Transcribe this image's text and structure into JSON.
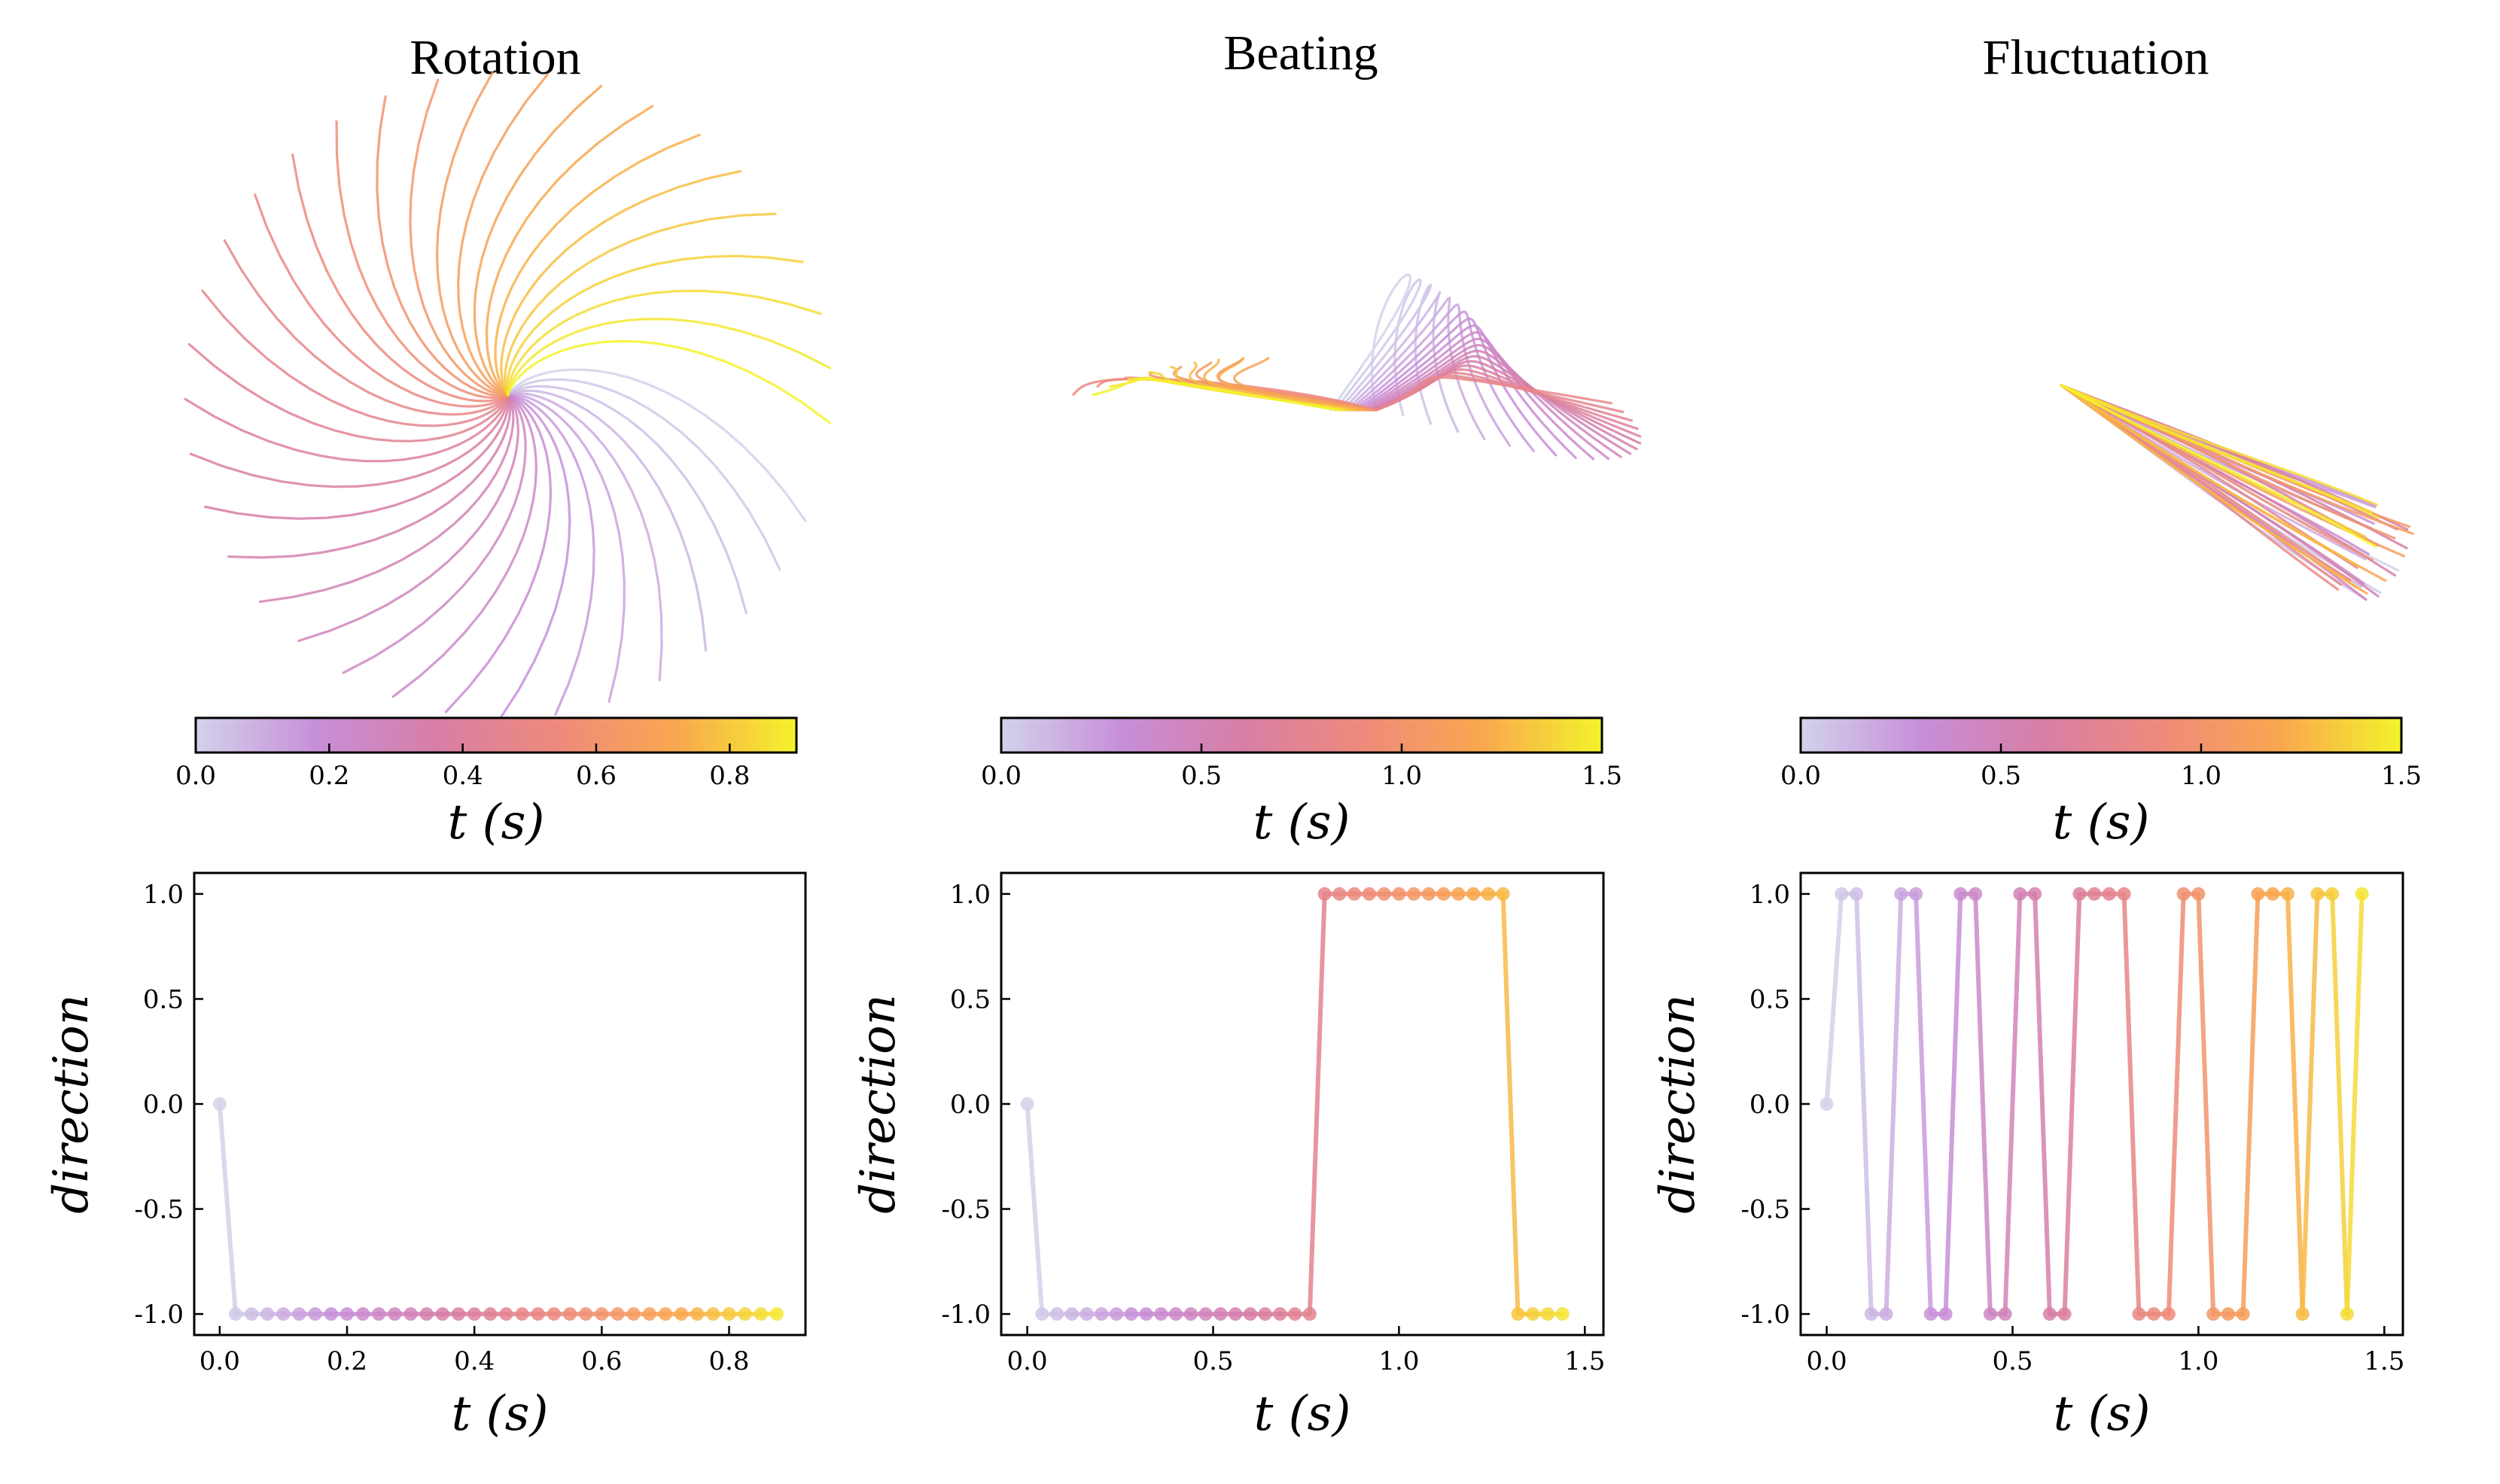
{
  "figure": {
    "panels": [
      {
        "title": "Rotation",
        "colorbar": {
          "label": "t (s)",
          "min": 0.0,
          "max": 0.9,
          "ticks": [
            "0.0",
            "0.2",
            "0.4",
            "0.6",
            "0.8"
          ],
          "tick_values": [
            0.0,
            0.2,
            0.4,
            0.6,
            0.8
          ]
        }
      },
      {
        "title": "Beating",
        "colorbar": {
          "label": "t (s)",
          "min": 0.0,
          "max": 1.5,
          "ticks": [
            "0.0",
            "0.5",
            "1.0",
            "1.5"
          ],
          "tick_values": [
            0.0,
            0.5,
            1.0,
            1.5
          ]
        }
      },
      {
        "title": "Fluctuation",
        "colorbar": {
          "label": "t (s)",
          "min": 0.0,
          "max": 1.5,
          "ticks": [
            "0.0",
            "0.5",
            "1.0",
            "1.5"
          ],
          "tick_values": [
            0.0,
            0.5,
            1.0,
            1.5
          ]
        }
      }
    ],
    "colormap": [
      "#d2d2ea",
      "#c78fd9",
      "#d77ea6",
      "#ee8a7c",
      "#f9a74f",
      "#f3f32b"
    ]
  },
  "chart_data": [
    {
      "type": "line",
      "panel": "Rotation",
      "xlabel": "t (s)",
      "ylabel": "direction",
      "xlim": [
        -0.04,
        0.92
      ],
      "ylim": [
        -1.1,
        1.1
      ],
      "xticks": [
        "0.0",
        "0.2",
        "0.4",
        "0.6",
        "0.8"
      ],
      "xtick_values": [
        0.0,
        0.2,
        0.4,
        0.6,
        0.8
      ],
      "yticks": [
        "1.0",
        "0.5",
        "0.0",
        "-0.5",
        "-1.0"
      ],
      "ytick_values": [
        1.0,
        0.5,
        0.0,
        -0.5,
        -1.0
      ],
      "x": [
        0.0,
        0.025,
        0.05,
        0.075,
        0.1,
        0.125,
        0.15,
        0.175,
        0.2,
        0.225,
        0.25,
        0.275,
        0.3,
        0.325,
        0.35,
        0.375,
        0.4,
        0.425,
        0.45,
        0.475,
        0.5,
        0.525,
        0.55,
        0.575,
        0.6,
        0.625,
        0.65,
        0.675,
        0.7,
        0.725,
        0.75,
        0.775,
        0.8,
        0.825,
        0.85,
        0.875
      ],
      "y": [
        0,
        -1,
        -1,
        -1,
        -1,
        -1,
        -1,
        -1,
        -1,
        -1,
        -1,
        -1,
        -1,
        -1,
        -1,
        -1,
        -1,
        -1,
        -1,
        -1,
        -1,
        -1,
        -1,
        -1,
        -1,
        -1,
        -1,
        -1,
        -1,
        -1,
        -1,
        -1,
        -1,
        -1,
        -1,
        -1
      ]
    },
    {
      "type": "line",
      "panel": "Beating",
      "xlabel": "t (s)",
      "ylabel": "direction",
      "xlim": [
        -0.07,
        1.55
      ],
      "ylim": [
        -1.1,
        1.1
      ],
      "xticks": [
        "0.0",
        "0.5",
        "1.0",
        "1.5"
      ],
      "xtick_values": [
        0.0,
        0.5,
        1.0,
        1.5
      ],
      "yticks": [
        "1.0",
        "0.5",
        "0.0",
        "-0.5",
        "-1.0"
      ],
      "ytick_values": [
        1.0,
        0.5,
        0.0,
        -0.5,
        -1.0
      ],
      "x": [
        0.0,
        0.04,
        0.08,
        0.12,
        0.16,
        0.2,
        0.24,
        0.28,
        0.32,
        0.36,
        0.4,
        0.44,
        0.48,
        0.52,
        0.56,
        0.6,
        0.64,
        0.68,
        0.72,
        0.76,
        0.8,
        0.84,
        0.88,
        0.92,
        0.96,
        1.0,
        1.04,
        1.08,
        1.12,
        1.16,
        1.2,
        1.24,
        1.28,
        1.32,
        1.36,
        1.4,
        1.44
      ],
      "y": [
        0,
        -1,
        -1,
        -1,
        -1,
        -1,
        -1,
        -1,
        -1,
        -1,
        -1,
        -1,
        -1,
        -1,
        -1,
        -1,
        -1,
        -1,
        -1,
        -1,
        1,
        1,
        1,
        1,
        1,
        1,
        1,
        1,
        1,
        1,
        1,
        1,
        1,
        -1,
        -1,
        -1,
        -1
      ]
    },
    {
      "type": "line",
      "panel": "Fluctuation",
      "xlabel": "t (s)",
      "ylabel": "direction",
      "xlim": [
        -0.07,
        1.55
      ],
      "ylim": [
        -1.1,
        1.1
      ],
      "xticks": [
        "0.0",
        "0.5",
        "1.0",
        "1.5"
      ],
      "xtick_values": [
        0.0,
        0.5,
        1.0,
        1.5
      ],
      "yticks": [
        "1.0",
        "0.5",
        "0.0",
        "-0.5",
        "-1.0"
      ],
      "ytick_values": [
        1.0,
        0.5,
        0.0,
        -0.5,
        -1.0
      ],
      "x": [
        0.0,
        0.04,
        0.08,
        0.12,
        0.16,
        0.2,
        0.24,
        0.28,
        0.32,
        0.36,
        0.4,
        0.44,
        0.48,
        0.52,
        0.56,
        0.6,
        0.64,
        0.68,
        0.72,
        0.76,
        0.8,
        0.84,
        0.88,
        0.92,
        0.96,
        1.0,
        1.04,
        1.08,
        1.12,
        1.16,
        1.2,
        1.24,
        1.28,
        1.32,
        1.36,
        1.4,
        1.44
      ],
      "y": [
        0,
        1,
        1,
        -1,
        -1,
        1,
        1,
        -1,
        -1,
        1,
        1,
        -1,
        -1,
        1,
        1,
        -1,
        -1,
        1,
        1,
        1,
        1,
        -1,
        -1,
        -1,
        1,
        1,
        -1,
        -1,
        -1,
        1,
        1,
        1,
        -1,
        1,
        1,
        -1,
        1
      ]
    }
  ]
}
